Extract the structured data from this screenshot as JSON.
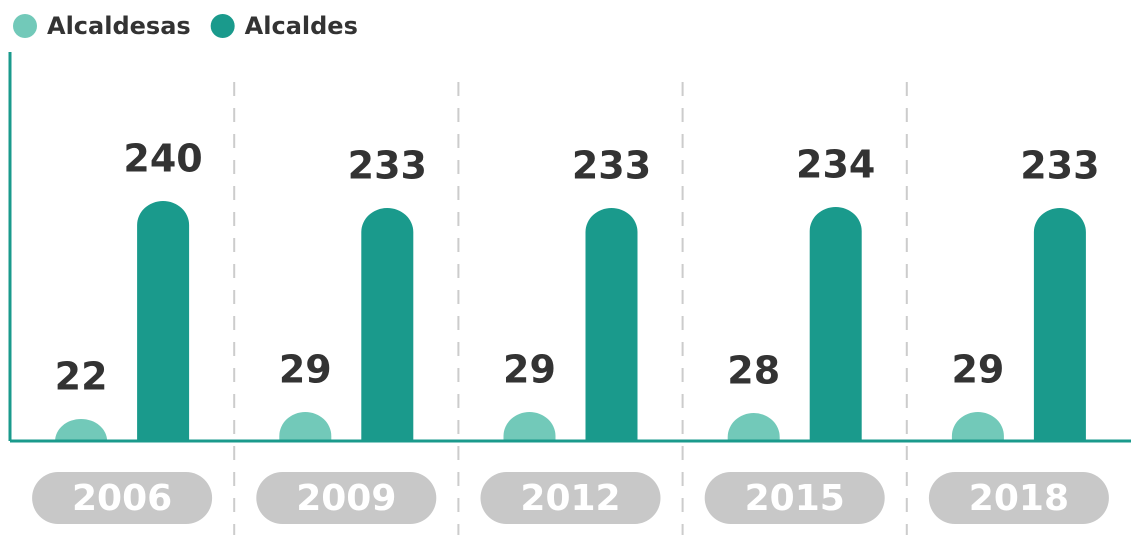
{
  "chart_data": {
    "type": "bar",
    "categories": [
      "2006",
      "2009",
      "2012",
      "2015",
      "2018"
    ],
    "series": [
      {
        "name": "Alcaldesas",
        "color": "#72c9b9",
        "values": [
          22,
          29,
          29,
          28,
          29
        ]
      },
      {
        "name": "Alcaldes",
        "color": "#1a9a8c",
        "values": [
          240,
          233,
          233,
          234,
          233
        ]
      }
    ],
    "ylim": [
      0,
      400
    ]
  }
}
